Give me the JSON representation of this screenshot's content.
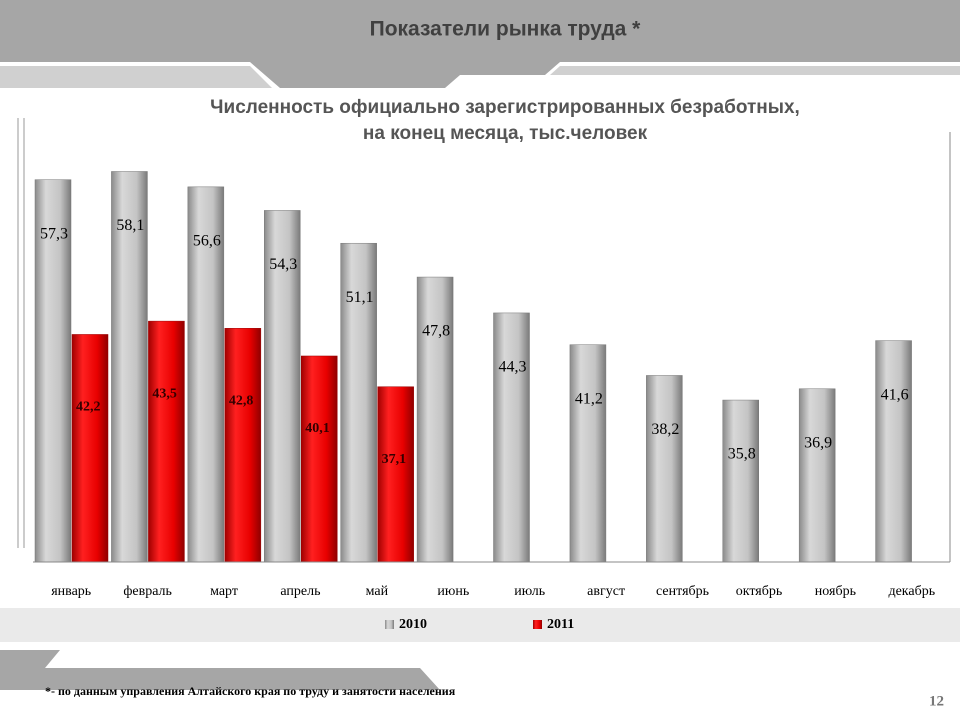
{
  "header": {
    "title": "Показатели рынка труда *"
  },
  "chart_data": {
    "type": "bar",
    "title": [
      "Численность официально зарегистрированных безработных,",
      "на конец месяца, тыс.человек"
    ],
    "categories": [
      "январь",
      "февраль",
      "март",
      "апрель",
      "май",
      "июнь",
      "июль",
      "август",
      "сентябрь",
      "октябрь",
      "ноябрь",
      "декабрь"
    ],
    "series": [
      {
        "name": "2010",
        "color": "#b4b4b4",
        "values": [
          57.3,
          58.1,
          56.6,
          54.3,
          51.1,
          47.8,
          44.3,
          41.2,
          38.2,
          35.8,
          36.9,
          41.6
        ],
        "value_labels": [
          "57,3",
          "58,1",
          "56,6",
          "54,3",
          "51,1",
          "47,8",
          "44,3",
          "41,2",
          "38,2",
          "35,8",
          "36,9",
          "41,6"
        ]
      },
      {
        "name": "2011",
        "color": "#e00000",
        "values": [
          42.2,
          43.5,
          42.8,
          40.1,
          37.1,
          null,
          null,
          null,
          null,
          null,
          null,
          null
        ],
        "value_labels": [
          "42,2",
          "43,5",
          "42,8",
          "40,1",
          "37,1",
          null,
          null,
          null,
          null,
          null,
          null,
          null
        ]
      }
    ],
    "ylim": [
      20,
      60
    ]
  },
  "footer": {
    "note": "*- по данным управления Алтайского края по труду и занятости населения",
    "page": "12"
  }
}
